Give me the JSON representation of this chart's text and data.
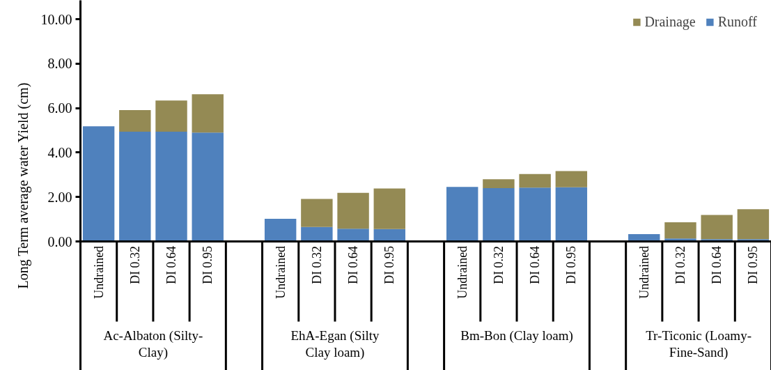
{
  "chart_data": {
    "type": "bar",
    "stacked": true,
    "ylabel": "Long Term average water Yield (cm)",
    "categories": [
      "Undrained",
      "DI 0.32",
      "DI 0.64",
      "DI 0.95",
      null,
      "Undrained",
      "DI 0.32",
      "DI 0.64",
      "DI 0.95",
      null,
      "Undrained",
      "DI 0.32",
      "DI 0.64",
      "DI 0.95",
      null,
      "Undrained",
      "DI 0.32",
      "DI 0.64",
      "DI 0.95"
    ],
    "annotations": [
      "Ac-Albaton (Silty-Clay)",
      "EhA-Egan (Silty Clay loam)",
      "Bm-Bon (Clay loam)",
      "Tr-Ticonic (Loamy-Fine-Sand)"
    ],
    "series": [
      {
        "name": "Runoff",
        "color": "#4f81bd",
        "values": [
          5.18,
          4.94,
          4.94,
          4.9,
          null,
          1.02,
          0.65,
          0.57,
          0.56,
          null,
          2.45,
          2.4,
          2.42,
          2.44,
          null,
          0.33,
          0.13,
          0.1,
          0.1
        ]
      },
      {
        "name": "Drainage",
        "color": "#948a54",
        "values": [
          null,
          0.97,
          1.4,
          1.72,
          null,
          null,
          1.26,
          1.62,
          1.82,
          null,
          null,
          0.4,
          0.61,
          0.73,
          null,
          null,
          0.73,
          1.09,
          1.35
        ]
      }
    ],
    "ylim": [
      0,
      10
    ],
    "yticks": [
      {
        "value": 0,
        "label": "0.00"
      },
      {
        "value": 2,
        "label": "2.00"
      },
      {
        "value": 4,
        "label": "4.00"
      },
      {
        "value": 6,
        "label": "6.00"
      },
      {
        "value": 8,
        "label": "8.00"
      },
      {
        "value": 10,
        "label": "10.00"
      }
    ],
    "grid": false,
    "legend": "top right"
  }
}
